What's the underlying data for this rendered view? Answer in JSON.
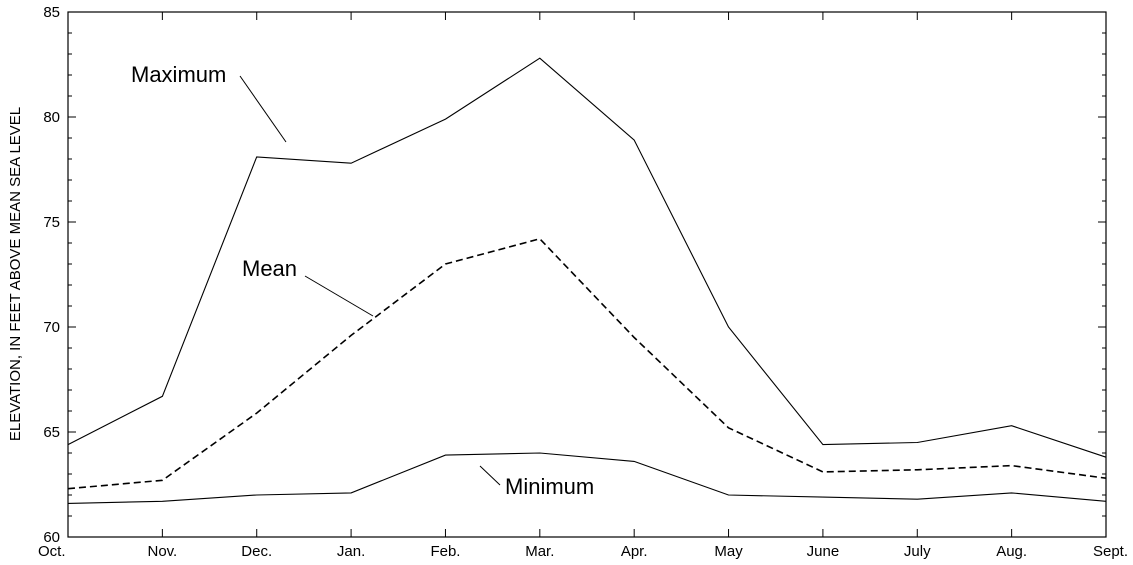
{
  "chart_data": {
    "type": "line",
    "title": "",
    "xlabel": "",
    "ylabel": "ELEVATION, IN FEET ABOVE MEAN SEA LEVEL",
    "categories": [
      "Oct.",
      "Nov.",
      "Dec.",
      "Jan.",
      "Feb.",
      "Mar.",
      "Apr.",
      "May",
      "June",
      "July",
      "Aug.",
      "Sept."
    ],
    "ylim": [
      60,
      85
    ],
    "yticks": [
      60,
      65,
      70,
      75,
      80,
      85
    ],
    "grid": false,
    "legend": "none",
    "series": [
      {
        "name": "Maximum",
        "style": "solid",
        "values": [
          64.4,
          66.7,
          78.1,
          77.8,
          79.9,
          82.8,
          78.9,
          70.0,
          64.4,
          64.5,
          65.3,
          63.8
        ]
      },
      {
        "name": "Mean",
        "style": "dashed",
        "values": [
          62.3,
          62.7,
          65.9,
          69.6,
          73.0,
          74.2,
          69.5,
          65.2,
          63.1,
          63.2,
          63.4,
          62.8
        ]
      },
      {
        "name": "Minimum",
        "style": "solid",
        "values": [
          61.6,
          61.7,
          62.0,
          62.1,
          63.9,
          64.0,
          63.6,
          62.0,
          61.9,
          61.8,
          62.1,
          61.7
        ]
      }
    ],
    "annotations": [
      {
        "text": "Maximum",
        "series": 0
      },
      {
        "text": "Mean",
        "series": 1
      },
      {
        "text": "Minimum",
        "series": 2
      }
    ]
  }
}
